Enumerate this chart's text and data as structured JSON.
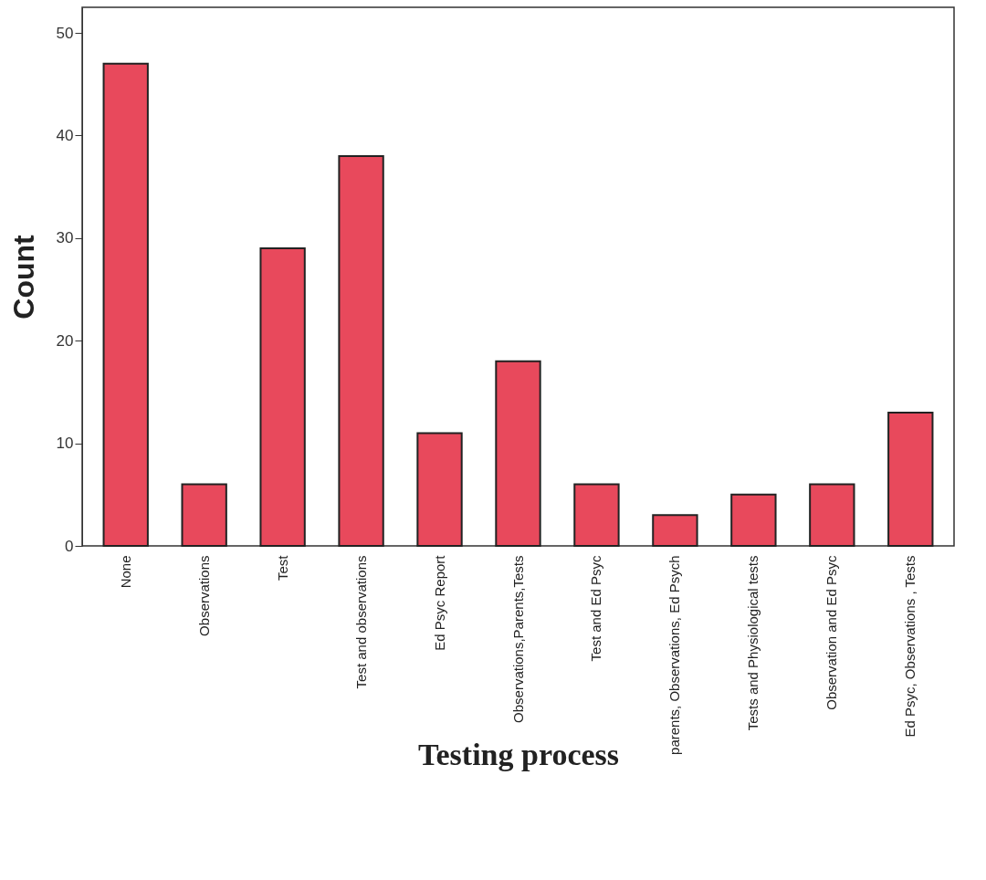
{
  "chart_data": {
    "type": "bar",
    "xlabel": "Testing process",
    "ylabel": "Count",
    "categories": [
      "None",
      "Observations",
      "Test",
      "Test and observations",
      "Ed Psyc Report",
      "Observations,Parents,Tests",
      "Test and Ed Psyc",
      "parents, Observations, Ed Psych",
      "Tests and Physiological tests",
      "Observation and Ed Psyc",
      "Ed Psyc, Observations , Tests"
    ],
    "values": [
      47,
      6,
      29,
      38,
      11,
      18,
      6,
      3,
      5,
      6,
      13
    ],
    "color": "#e8495c",
    "ylim": [
      0,
      52.5
    ],
    "yticks": [
      0,
      10,
      20,
      30,
      40,
      50
    ],
    "grid": false
  }
}
